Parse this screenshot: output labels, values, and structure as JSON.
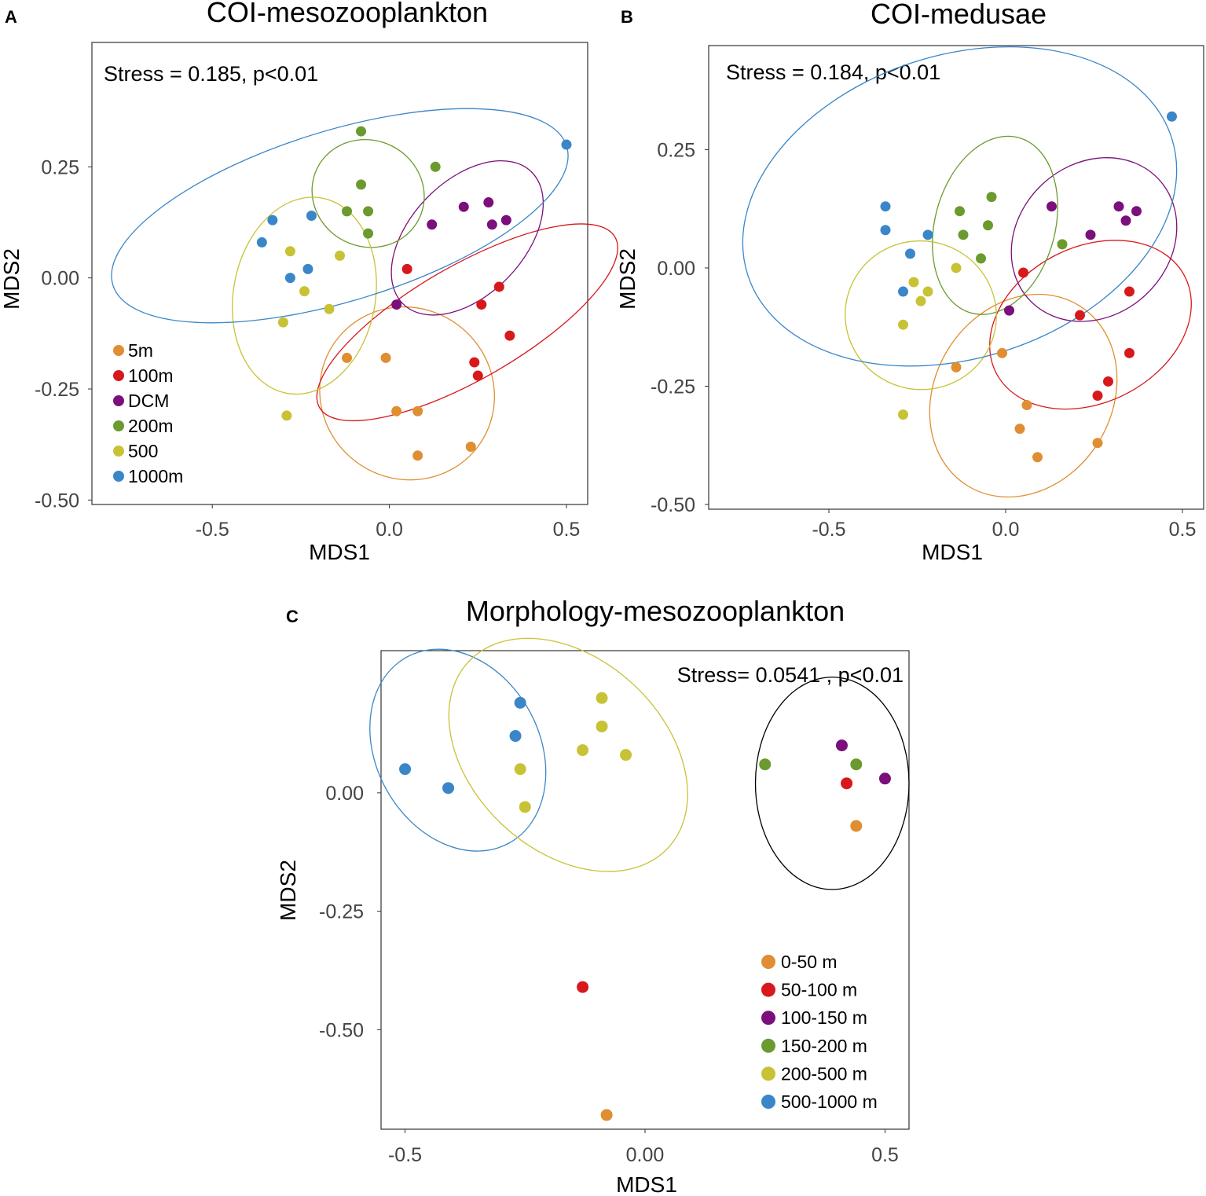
{
  "chart_data": [
    {
      "panel": "A",
      "type": "scatter",
      "title": "COI-mesozooplankton",
      "xlabel": "MDS1",
      "ylabel": "MDS2",
      "annotation": "Stress = 0.185, p<0.01",
      "xlim": [
        -0.84,
        0.56
      ],
      "ylim": [
        -0.51,
        0.53
      ],
      "xticks": [
        -0.5,
        0.0,
        0.5
      ],
      "xtick_labels": [
        "-0.5",
        "0.0",
        "0.5"
      ],
      "yticks": [
        0.25,
        0.0,
        -0.25,
        -0.5
      ],
      "ytick_labels": [
        "0.25",
        "0.00",
        "-0.25",
        "-0.50"
      ],
      "legend_position": "bottom-left",
      "series": [
        {
          "name": "5m",
          "color": "#E08E32",
          "x": [
            -0.12,
            -0.01,
            0.02,
            0.08,
            0.08,
            0.23
          ],
          "y": [
            -0.18,
            -0.18,
            -0.3,
            -0.3,
            -0.4,
            -0.38
          ],
          "ellipse": {
            "cx": 0.05,
            "cy": -0.26,
            "rx": 0.25,
            "ry": 0.06,
            "angle": -37
          }
        },
        {
          "name": "100m",
          "color": "#D7191C",
          "x": [
            0.05,
            0.31,
            0.26,
            0.34,
            0.24,
            0.25
          ],
          "y": [
            0.02,
            -0.02,
            -0.06,
            -0.13,
            -0.19,
            -0.22
          ],
          "ellipse": {
            "cx": 0.22,
            "cy": -0.1,
            "rx": 0.16,
            "ry": 0.12,
            "angle": -60
          }
        },
        {
          "name": "DCM",
          "color": "#7B0F7B",
          "x": [
            0.21,
            0.28,
            0.12,
            0.29,
            0.33,
            0.02
          ],
          "y": [
            0.16,
            0.17,
            0.12,
            0.12,
            0.13,
            -0.06
          ],
          "ellipse": {
            "cx": 0.22,
            "cy": 0.09,
            "rx": 0.26,
            "ry": 0.04,
            "angle": 46
          }
        },
        {
          "name": "200m",
          "color": "#6B9A2E",
          "x": [
            -0.08,
            0.13,
            -0.08,
            -0.12,
            -0.06,
            -0.06
          ],
          "y": [
            0.33,
            0.25,
            0.21,
            0.15,
            0.15,
            0.1
          ],
          "ellipse": {
            "cx": -0.06,
            "cy": 0.19,
            "rx": 0.15,
            "ry": 0.04,
            "angle": 63
          }
        },
        {
          "name": "500",
          "color": "#C8C235",
          "x": [
            -0.28,
            -0.14,
            -0.24,
            -0.17,
            -0.3,
            -0.29
          ],
          "y": [
            0.06,
            0.05,
            -0.03,
            -0.07,
            -0.1,
            -0.31
          ],
          "ellipse": {
            "cx": -0.24,
            "cy": -0.04,
            "rx": 0.28,
            "ry": 0.05,
            "angle": 80
          }
        },
        {
          "name": "1000m",
          "color": "#3A86C8",
          "x": [
            -0.33,
            -0.36,
            -0.22,
            -0.23,
            -0.28,
            0.5
          ],
          "y": [
            0.13,
            0.08,
            0.14,
            0.02,
            0.0,
            0.3
          ],
          "ellipse": {
            "cx": -0.14,
            "cy": 0.14,
            "rx": 0.67,
            "ry": 0.06,
            "angle": 17
          }
        }
      ]
    },
    {
      "panel": "B",
      "type": "scatter",
      "title": "COI-medusae",
      "xlabel": "MDS1",
      "ylabel": "MDS2",
      "annotation": "Stress = 0.184, p<0.01",
      "xlim": [
        -0.84,
        0.56
      ],
      "ylim": [
        -0.51,
        0.47
      ],
      "xticks": [
        -0.5,
        0.0,
        0.5
      ],
      "xtick_labels": [
        "-0.5",
        "0.0",
        "0.5"
      ],
      "yticks": [
        0.25,
        0.0,
        -0.25,
        -0.5
      ],
      "ytick_labels": [
        "0.25",
        "0.00",
        "-0.25",
        "-0.50"
      ],
      "series": [
        {
          "name": "5m",
          "color": "#E08E32",
          "x": [
            -0.14,
            -0.01,
            0.06,
            0.04,
            0.26,
            0.09
          ],
          "y": [
            -0.21,
            -0.18,
            -0.29,
            -0.34,
            -0.37,
            -0.4
          ],
          "ellipse": {
            "cx": 0.05,
            "cy": -0.27,
            "rx": 0.25,
            "ry": 0.07,
            "angle": -32
          }
        },
        {
          "name": "100m",
          "color": "#D7191C",
          "x": [
            0.05,
            0.35,
            0.21,
            0.35,
            0.29,
            0.26
          ],
          "y": [
            -0.01,
            -0.05,
            -0.1,
            -0.18,
            -0.24,
            -0.27
          ],
          "ellipse": {
            "cx": 0.24,
            "cy": -0.12,
            "rx": 0.22,
            "ry": 0.07,
            "angle": -63
          }
        },
        {
          "name": "DCM",
          "color": "#7B0F7B",
          "x": [
            0.13,
            0.32,
            0.37,
            0.34,
            0.24,
            0.01
          ],
          "y": [
            0.13,
            0.13,
            0.12,
            0.1,
            0.07,
            -0.09
          ],
          "ellipse": {
            "cx": 0.25,
            "cy": 0.06,
            "rx": 0.25,
            "ry": 0.05,
            "angle": 43
          }
        },
        {
          "name": "200m",
          "color": "#6B9A2E",
          "x": [
            -0.04,
            -0.13,
            -0.05,
            -0.12,
            -0.07,
            0.16
          ],
          "y": [
            0.15,
            0.12,
            0.09,
            0.07,
            0.02,
            0.05
          ],
          "ellipse": {
            "cx": -0.03,
            "cy": 0.09,
            "rx": 0.17,
            "ry": 0.06,
            "angle": -15
          }
        },
        {
          "name": "500",
          "color": "#C8C235",
          "x": [
            -0.14,
            -0.26,
            -0.22,
            -0.24,
            -0.29,
            -0.29
          ],
          "y": [
            0.0,
            -0.03,
            -0.05,
            -0.07,
            -0.12,
            -0.31
          ],
          "ellipse": {
            "cx": -0.24,
            "cy": -0.1,
            "rx": 0.21,
            "ry": 0.05,
            "angle": 76
          }
        },
        {
          "name": "1000m",
          "color": "#3A86C8",
          "x": [
            -0.34,
            -0.34,
            -0.22,
            -0.27,
            -0.29,
            0.47
          ],
          "y": [
            0.13,
            0.08,
            0.07,
            0.03,
            -0.05,
            0.32
          ],
          "ellipse": {
            "cx": -0.13,
            "cy": 0.13,
            "rx": 0.63,
            "ry": 0.1,
            "angle": 18
          }
        }
      ]
    },
    {
      "panel": "C",
      "type": "scatter",
      "title": "Morphology-mesozooplankton",
      "xlabel": "MDS1",
      "ylabel": "MDS2",
      "annotation": "Stress= 0.0541 , p<0.01",
      "xlim": [
        -0.55,
        0.55
      ],
      "ylim": [
        -0.71,
        0.3
      ],
      "xticks": [
        -0.5,
        0.0,
        0.5
      ],
      "xtick_labels": [
        "-0.5",
        "0.00",
        "0.5"
      ],
      "yticks": [
        0.0,
        -0.25,
        -0.5
      ],
      "ytick_labels": [
        "0.00",
        "-0.25",
        "-0.50"
      ],
      "legend_position": "bottom-right",
      "series": [
        {
          "name": "0-50 m",
          "color": "#E08E32",
          "x": [
            0.44,
            -0.08
          ],
          "y": [
            -0.07,
            -0.68
          ]
        },
        {
          "name": "50-100 m",
          "color": "#D7191C",
          "x": [
            0.42,
            -0.13
          ],
          "y": [
            0.02,
            -0.41
          ]
        },
        {
          "name": "100-150 m",
          "color": "#7B0F7B",
          "x": [
            0.41,
            0.5
          ],
          "y": [
            0.1,
            0.03
          ]
        },
        {
          "name": "150-200 m",
          "color": "#6B9A2E",
          "x": [
            0.25,
            0.44
          ],
          "y": [
            0.06,
            0.06
          ]
        },
        {
          "name": "200-500 m",
          "color": "#C8C235",
          "x": [
            -0.09,
            -0.13,
            -0.09,
            -0.04,
            -0.26,
            -0.25
          ],
          "y": [
            0.2,
            0.09,
            0.14,
            0.08,
            0.05,
            -0.03
          ]
        },
        {
          "name": "500-1000 m",
          "color": "#3A86C8",
          "x": [
            -0.26,
            -0.27,
            -0.5,
            -0.41
          ],
          "y": [
            0.19,
            0.12,
            0.05,
            0.01
          ]
        }
      ],
      "ellipses": [
        {
          "color": "#3A86C8",
          "cx": -0.39,
          "cy": 0.09,
          "rx": 0.17,
          "ry": 0.07,
          "angle": 29
        },
        {
          "color": "#C8C235",
          "cx": -0.16,
          "cy": 0.08,
          "rx": 0.2,
          "ry": 0.09,
          "angle": 47
        },
        {
          "color": "#000000",
          "cx": 0.39,
          "cy": 0.02,
          "rx": 0.16,
          "ry": 0.07,
          "angle": 0
        }
      ]
    }
  ]
}
